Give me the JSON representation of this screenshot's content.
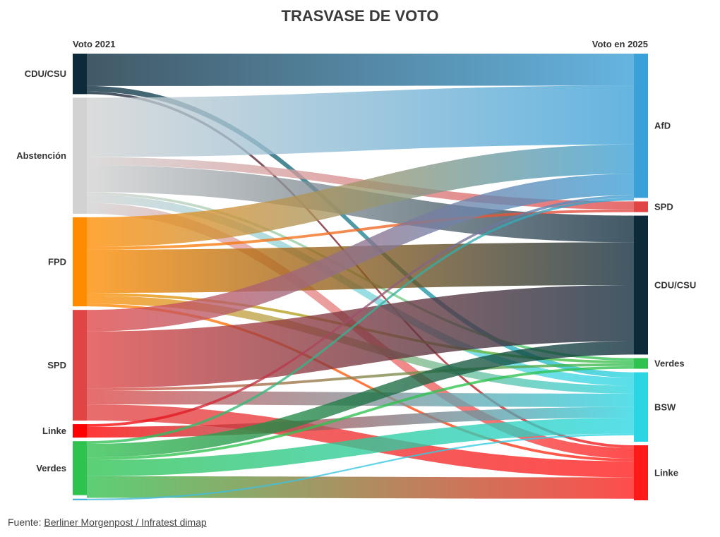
{
  "title": "TRASVASE DE VOTO",
  "left_header": "Voto 2021",
  "right_header": "Voto en 2025",
  "source_prefix": "Fuente: ",
  "source_link": "Berliner Morgenpost / Infratest dimap",
  "chart_data": {
    "type": "sankey",
    "title": "TRASVASE DE VOTO",
    "left_nodes": [
      {
        "name": "CDU/CSU",
        "value": 7.5,
        "color": "#0d2a3b"
      },
      {
        "name": "Abstención",
        "value": 21.5,
        "color": "#d2d2d2"
      },
      {
        "name": "FPD",
        "value": 16.5,
        "color": "#ff8c00"
      },
      {
        "name": "SPD",
        "value": 20.5,
        "color": "#e04444"
      },
      {
        "name": "Linke",
        "value": 2.5,
        "color": "#ff0000"
      },
      {
        "name": "Verdes",
        "value": 10.0,
        "color": "#2fc24f"
      },
      {
        "name": "",
        "value": 0.3,
        "color": "#49b5dc"
      }
    ],
    "right_nodes": [
      {
        "name": "AfD",
        "value": 27.0,
        "color": "#3aa0d8"
      },
      {
        "name": "SPD",
        "value": 2.0,
        "color": "#e04444"
      },
      {
        "name": "CDU/CSU",
        "value": 26.0,
        "color": "#0d2a3b"
      },
      {
        "name": "Verdes",
        "value": 2.0,
        "color": "#2fc24f"
      },
      {
        "name": "BSW",
        "value": 13.0,
        "color": "#2ad6e3"
      },
      {
        "name": "Linke",
        "value": 10.3,
        "color": "#ff1a1a"
      }
    ],
    "links": [
      {
        "source": "CDU/CSU",
        "target": "AfD",
        "value": 6.0
      },
      {
        "source": "CDU/CSU",
        "target": "BSW",
        "value": 1.0
      },
      {
        "source": "CDU/CSU",
        "target": "Linke",
        "value": 0.5
      },
      {
        "source": "Abstención",
        "target": "AfD",
        "value": 11.0
      },
      {
        "source": "Abstención",
        "target": "SPD",
        "value": 1.5
      },
      {
        "source": "Abstención",
        "target": "CDU/CSU",
        "value": 5.0
      },
      {
        "source": "Abstención",
        "target": "Verdes",
        "value": 0.5
      },
      {
        "source": "Abstención",
        "target": "BSW",
        "value": 1.5
      },
      {
        "source": "Abstención",
        "target": "Linke",
        "value": 2.0
      },
      {
        "source": "FPD",
        "target": "AfD",
        "value": 5.5
      },
      {
        "source": "FPD",
        "target": "SPD",
        "value": 0.5
      },
      {
        "source": "FPD",
        "target": "CDU/CSU",
        "value": 8.0
      },
      {
        "source": "FPD",
        "target": "Verdes",
        "value": 0.5
      },
      {
        "source": "FPD",
        "target": "BSW",
        "value": 1.5
      },
      {
        "source": "FPD",
        "target": "Linke",
        "value": 0.5
      },
      {
        "source": "SPD",
        "target": "AfD",
        "value": 4.0
      },
      {
        "source": "SPD",
        "target": "CDU/CSU",
        "value": 10.5
      },
      {
        "source": "SPD",
        "target": "Verdes",
        "value": 0.5
      },
      {
        "source": "SPD",
        "target": "BSW",
        "value": 2.5
      },
      {
        "source": "SPD",
        "target": "Linke",
        "value": 3.0
      },
      {
        "source": "Linke",
        "target": "AfD",
        "value": 0.5
      },
      {
        "source": "Linke",
        "target": "BSW",
        "value": 2.0
      },
      {
        "source": "Verdes",
        "target": "AfD",
        "value": 0.5
      },
      {
        "source": "Verdes",
        "target": "CDU/CSU",
        "value": 2.5
      },
      {
        "source": "Verdes",
        "target": "Verdes",
        "value": 0.5
      },
      {
        "source": "Verdes",
        "target": "BSW",
        "value": 3.0
      },
      {
        "source": "Verdes",
        "target": "Linke",
        "value": 4.0
      },
      {
        "source": "",
        "target": "BSW",
        "value": 0.3
      }
    ]
  }
}
